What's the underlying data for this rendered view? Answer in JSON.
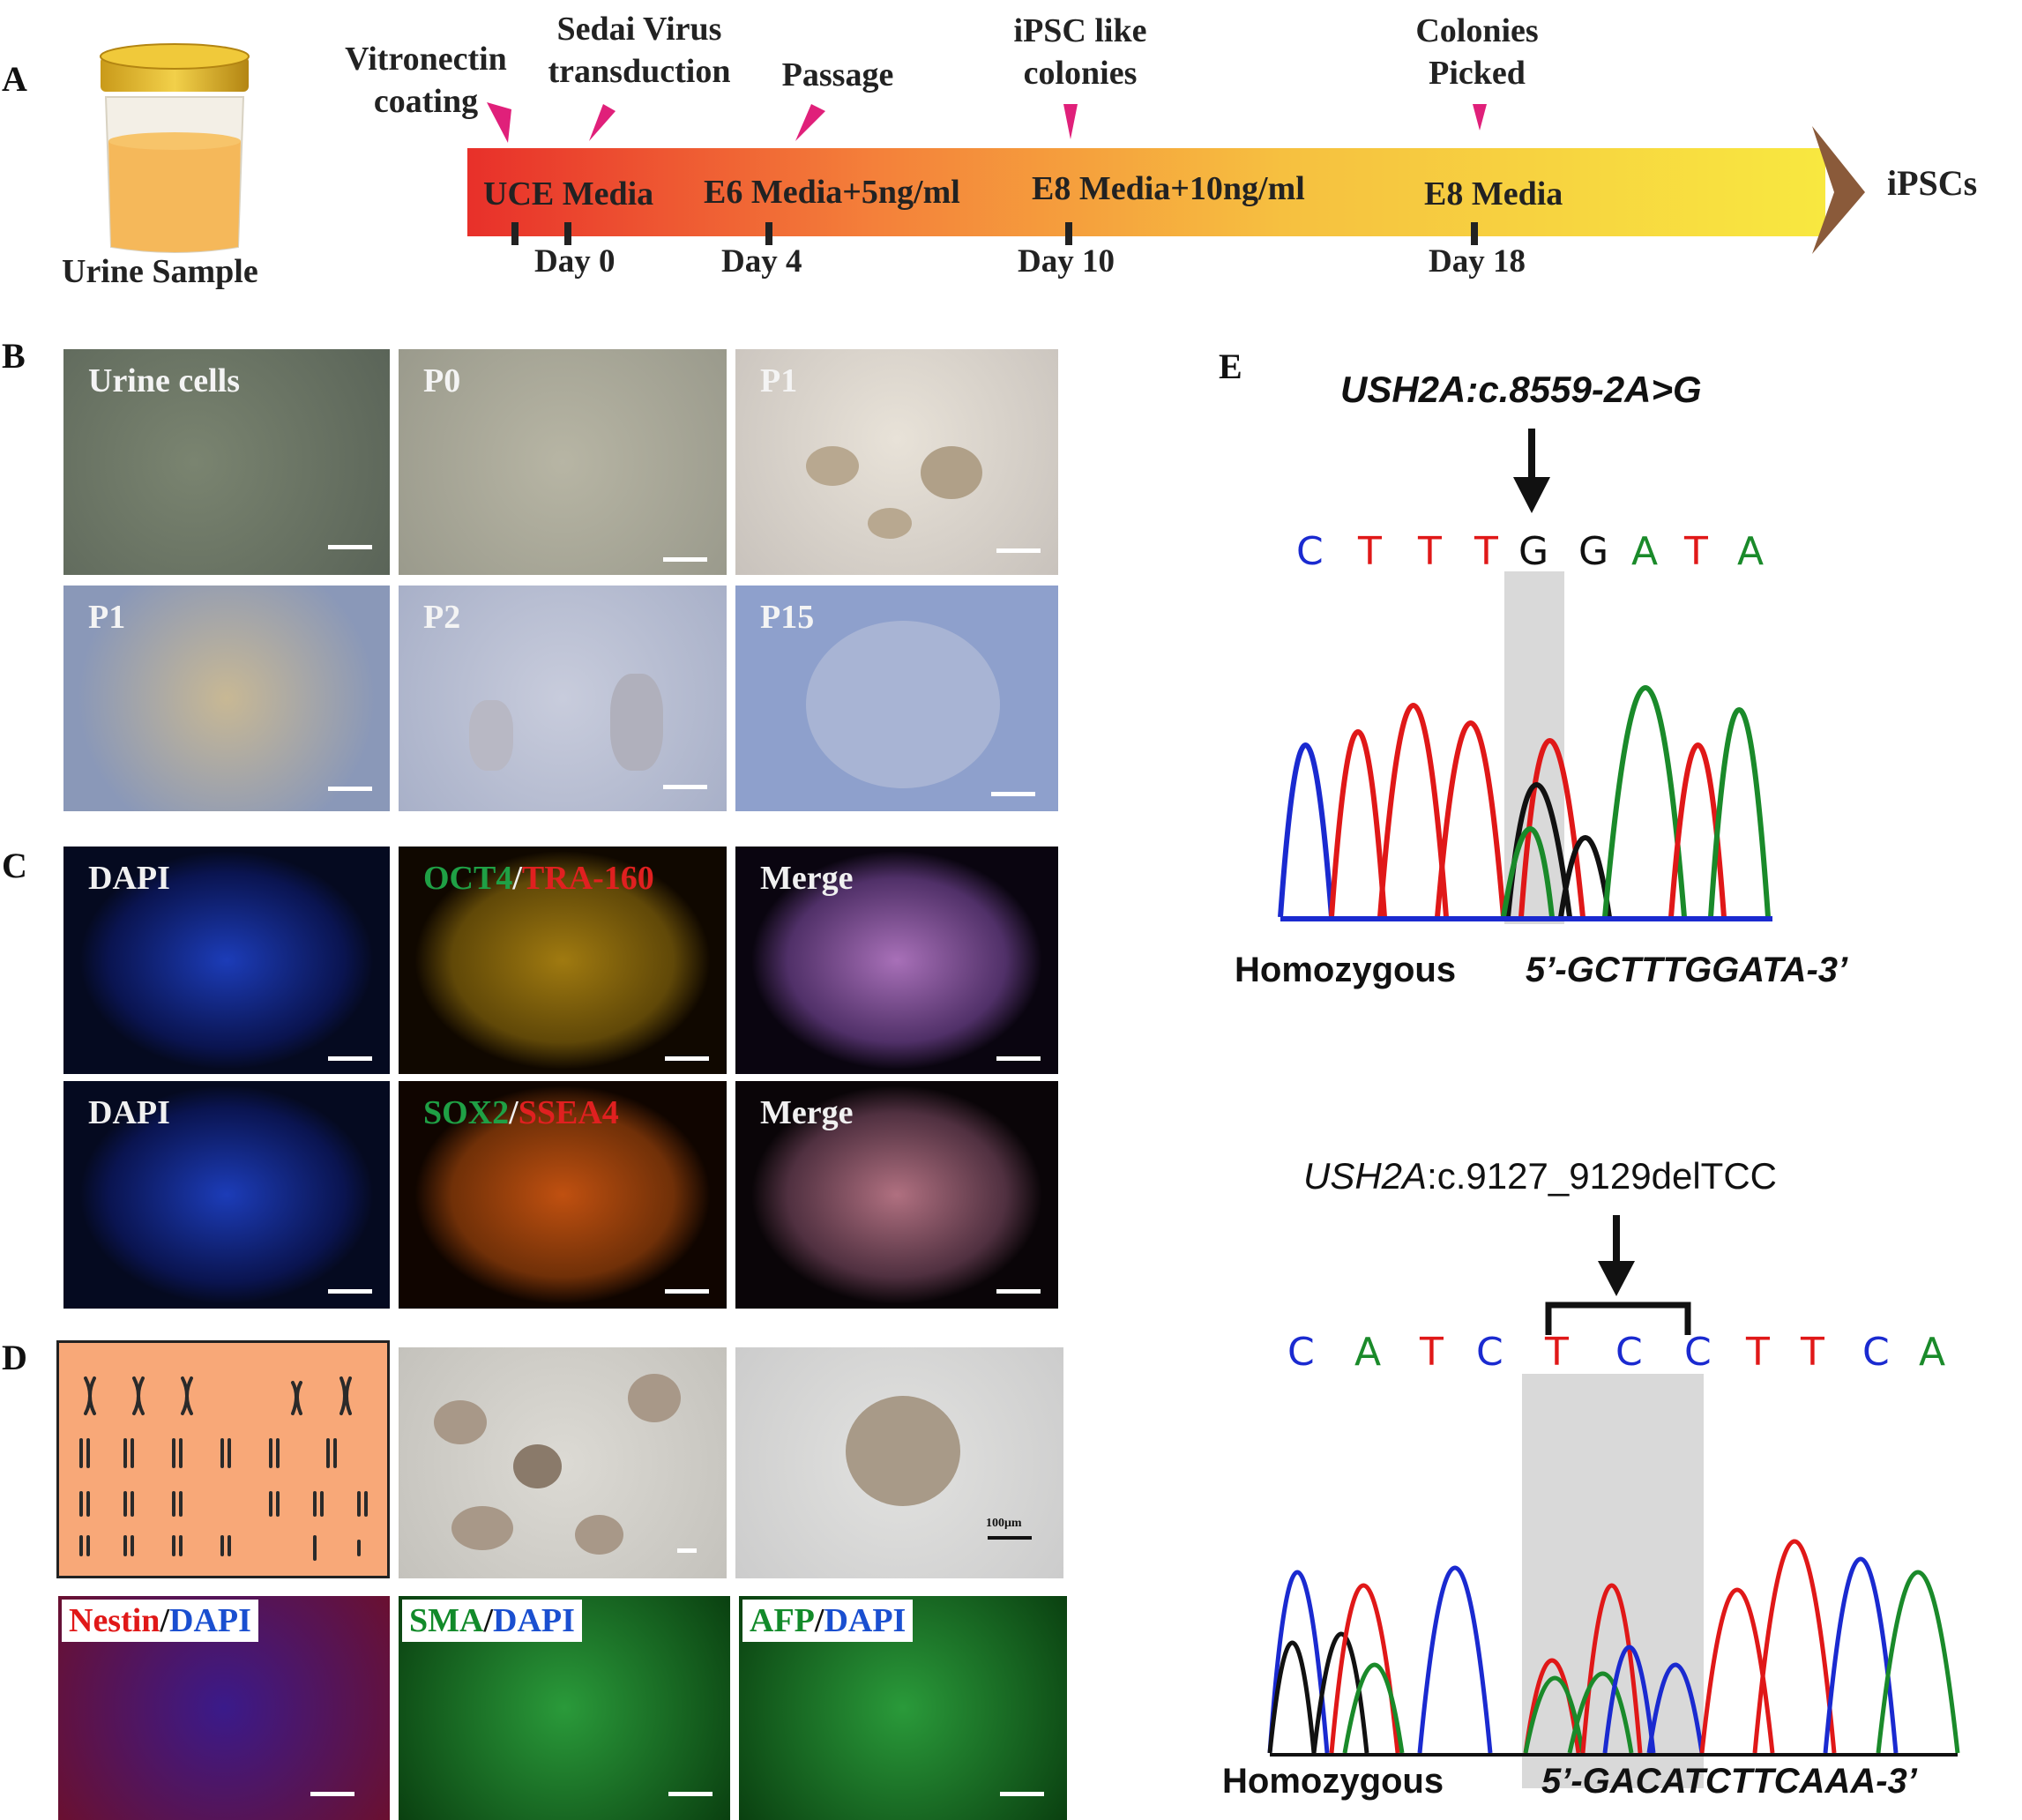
{
  "panels": {
    "A": "A",
    "B": "B",
    "C": "C",
    "D": "D",
    "E": "E"
  },
  "panelA": {
    "sample_label": "Urine Sample",
    "steps": [
      {
        "line1": "Vitronectin",
        "line2": "coating"
      },
      {
        "line1": "Sedai Virus",
        "line2": "transduction"
      },
      {
        "line1": "Passage",
        "line2": ""
      },
      {
        "line1": "iPSC like",
        "line2": "colonies"
      },
      {
        "line1": "Colonies",
        "line2": "Picked"
      }
    ],
    "media": [
      "UCE Media",
      "E6 Media+5ng/ml",
      "E8 Media+10ng/ml",
      "E8 Media"
    ],
    "days": [
      "Day 0",
      "Day 4",
      "Day 10",
      "Day 18"
    ],
    "endpoint": "iPSCs",
    "colors": {
      "arrow_start": "#e8302a",
      "arrow_mid": "#f5a63c",
      "arrow_end": "#f7e23a",
      "marker": "#e0207a",
      "tip": "#8a5a3a"
    }
  },
  "panelB": {
    "tiles": [
      "Urine cells",
      "P0",
      "P1",
      "P1",
      "P2",
      "P15"
    ]
  },
  "panelC": {
    "row1": {
      "dapi": "DAPI",
      "marker_a": "OCT4",
      "sep": "/",
      "marker_b": "TRA-160",
      "merge": "Merge"
    },
    "row2": {
      "dapi": "DAPI",
      "marker_a": "SOX2",
      "sep": "/",
      "marker_b": "SSEA4",
      "merge": "Merge"
    },
    "colors": {
      "green": "#1fa045",
      "red": "#e02020",
      "white": "#f0f0f0"
    }
  },
  "panelD": {
    "scale_text": "100μm",
    "stains": [
      {
        "marker": "Nestin",
        "sep": "/",
        "dapi": "DAPI",
        "marker_color": "#e01818"
      },
      {
        "marker": "SMA",
        "sep": "/",
        "dapi": "DAPI",
        "marker_color": "#128a2a"
      },
      {
        "marker": "AFP",
        "sep": "/",
        "dapi": "DAPI",
        "marker_color": "#128a2a"
      }
    ],
    "dapi_color": "#1a4fd0"
  },
  "panelE": {
    "top": {
      "mutation_gene": "USH2A",
      "mutation_rest": ":c.8559-2A>G",
      "bases": [
        "C",
        "T",
        "T",
        "T",
        "G",
        "G",
        "A",
        "T",
        "A"
      ],
      "zygosity": "Homozygous",
      "sequence": "5’-GCTTTGGATA-3’"
    },
    "bottom": {
      "mutation_gene": "USH2A",
      "mutation_rest": ":c.9127_9129delTCC",
      "bases": [
        "C",
        "A",
        "T",
        "C",
        "T",
        "C",
        "C",
        "T",
        "T",
        "C",
        "A"
      ],
      "zygosity": "Homozygous",
      "sequence": "5’-GACATCTTCAAA-3’"
    },
    "base_colors": {
      "A": "#1a8a2a",
      "C": "#1a2ad0",
      "G": "#111111",
      "T": "#e01818"
    }
  }
}
